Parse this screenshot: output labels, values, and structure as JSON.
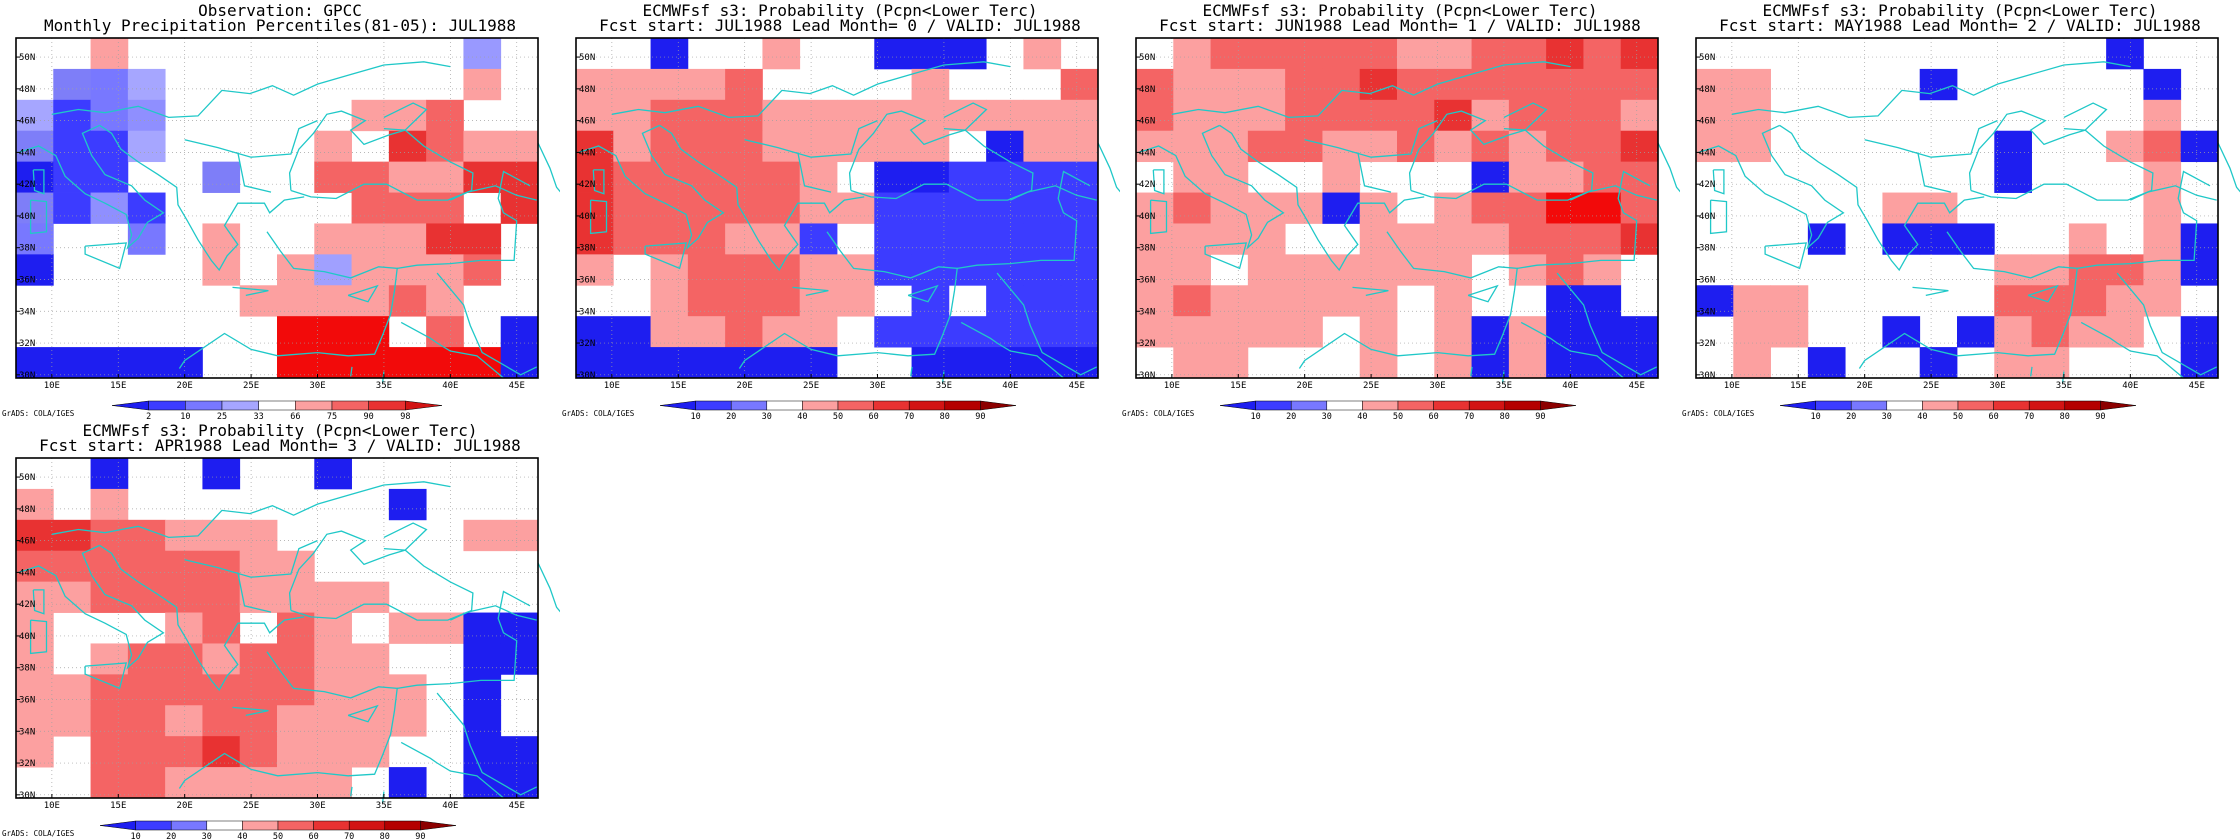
{
  "colors": {
    "coast": "#20c8c8",
    "frame": "#000000",
    "grid": "#a0a0a0",
    "scale": [
      "#1e1ef0",
      "#3c3cff",
      "#7878ff",
      "#a6a6ff",
      "#ffffff",
      "#fca0a0",
      "#f46464",
      "#e83232",
      "#d21414",
      "#b40000",
      "#7d0000"
    ]
  },
  "credit": "GrADS: COLA/IGES",
  "x_ticks": [
    "10E",
    "15E",
    "20E",
    "25E",
    "30E",
    "35E",
    "40E",
    "45E"
  ],
  "y_ticks": [
    "50N",
    "48N",
    "46N",
    "44N",
    "42N",
    "40N",
    "38N",
    "36N",
    "34N",
    "32N",
    "30N"
  ],
  "panels": [
    {
      "title1": "Observation: GPCC",
      "title2": "Monthly Precipitation Percentiles(81-05): JUL1988",
      "cbar_labels": [
        "2",
        "10",
        "25",
        "33",
        "66",
        "75",
        "90",
        "98"
      ],
      "cbar_colors": [
        "#1e1ef0",
        "#3c3cff",
        "#7878ff",
        "#a6a6ff",
        "#ffffff",
        "#fca0a0",
        "#f46464",
        "#e83232",
        "#d21414"
      ]
    },
    {
      "title1": "ECMWFsf s3: Probability (Pcpn<Lower Terc)",
      "title2": "Fcst start: JUL1988  Lead Month= 0 / VALID: JUL1988",
      "cbar_labels": [
        "10",
        "20",
        "30",
        "40",
        "50",
        "60",
        "70",
        "80",
        "90"
      ],
      "cbar_colors": [
        "#1e1ef0",
        "#3c3cff",
        "#7878ff",
        "#ffffff",
        "#fca0a0",
        "#f46464",
        "#e83232",
        "#d21414",
        "#b40000",
        "#8c0000"
      ]
    },
    {
      "title1": "ECMWFsf s3: Probability (Pcpn<Lower Terc)",
      "title2": "Fcst start: JUN1988  Lead Month= 1 / VALID: JUL1988",
      "cbar_labels": [
        "10",
        "20",
        "30",
        "40",
        "50",
        "60",
        "70",
        "80",
        "90"
      ],
      "cbar_colors": [
        "#1e1ef0",
        "#3c3cff",
        "#7878ff",
        "#ffffff",
        "#fca0a0",
        "#f46464",
        "#e83232",
        "#d21414",
        "#b40000",
        "#8c0000"
      ]
    },
    {
      "title1": "ECMWFsf s3: Probability (Pcpn<Lower Terc)",
      "title2": "Fcst start: MAY1988  Lead Month= 2 / VALID: JUL1988",
      "cbar_labels": [
        "10",
        "20",
        "30",
        "40",
        "50",
        "60",
        "70",
        "80",
        "90"
      ],
      "cbar_colors": [
        "#1e1ef0",
        "#3c3cff",
        "#7878ff",
        "#ffffff",
        "#fca0a0",
        "#f46464",
        "#e83232",
        "#d21414",
        "#b40000",
        "#8c0000"
      ]
    },
    {
      "title1": "ECMWFsf s3: Probability (Pcpn<Lower Terc)",
      "title2": "Fcst start: APR1988  Lead Month= 3 / VALID: JUL1988",
      "cbar_labels": [
        "10",
        "20",
        "30",
        "40",
        "50",
        "60",
        "70",
        "80",
        "90"
      ],
      "cbar_colors": [
        "#1e1ef0",
        "#3c3cff",
        "#7878ff",
        "#ffffff",
        "#fca0a0",
        "#f46464",
        "#e83232",
        "#d21414",
        "#b40000",
        "#8c0000"
      ]
    }
  ],
  "grids": [
    [
      "..o.........3.",
      ".c2b........o.",
      "b12a.....oow..",
      "c11b....o.pwoo",
      "011..c..wwoopp",
      "c1a1.....www.p",
      "2..2.o..ooopp.",
      "0....o.ouooow.",
      "......oooowo..",
      ".......nnn.w.0",
      "00000..nnnnnn0"
    ],
    [
      "..0..o..000.o.",
      "oooow....o...w",
      "oowwwooooooooo",
      "powwwooooo.0oo",
      "pwwwwwo.001111",
      "pwwwwwoo111111",
      "pwwwoo1.111111",
      "o.owwwoo111111",
      "..owwwoo.1.111",
      "00oowoo.111111",
      "0000000..00000"
    ],
    [
      ".owwwwwoowwpwp",
      "wooowwpwwwwwww",
      "wooowwwwpowwwo",
      "ooowwoowowowwp",
      ".oo..o...0ooww",
      "owooo0o.owwnnw",
      "oooo..oooowwwp",
      "oo.oooooo.owo.",
      "owooooo.o..00.",
      "ooooo.o.o0o000",
      ".oo...o.o0o000"
    ],
    [
      "...........0..",
      "oo....0.....0.",
      "oo..........o.",
      "oo......0..ow0",
      "........0...o.",
      ".....oo.....o.",
      "...0.000..o.o0",
      "........oowwo0",
      "0oo.....wwwoo.",
      ".oo..0.0owoo.0",
      ".o.0..0.oo...0"
    ],
    [
      "..0..0..0.....",
      "o.o.......0...",
      "ppwwooo.....oo",
      "wwwwwwoo......",
      "oowwwwoooo....",
      "o...ow.wo.oo00",
      "o.owwowwoo..00",
      "oowwwwwwooo.0.",
      "oowwowwoooo.0.",
      "o.wwwpwooo..00",
      "..wwooooo.0.00"
    ]
  ]
}
